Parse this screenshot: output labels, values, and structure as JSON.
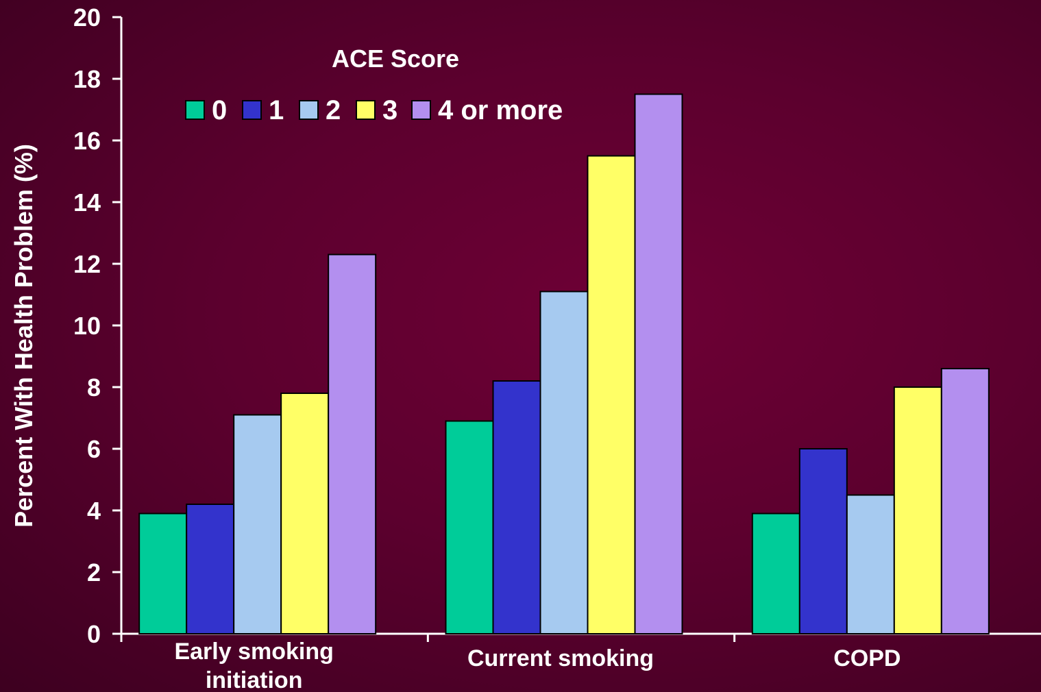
{
  "chart_data": {
    "type": "bar",
    "ylabel": "Percent With Health Problem  (%)",
    "xlabel": "",
    "ylim": [
      0,
      20
    ],
    "yticks": [
      0,
      2,
      4,
      6,
      8,
      10,
      12,
      14,
      16,
      18,
      20
    ],
    "categories": [
      [
        "Early smoking",
        "initiation"
      ],
      [
        "Current smoking"
      ],
      [
        "COPD"
      ]
    ],
    "legend": {
      "title": "ACE Score",
      "placement": "top-left"
    },
    "series": [
      {
        "name": "0",
        "color": "#00cc99",
        "values": [
          3.9,
          6.9,
          3.9
        ]
      },
      {
        "name": "1",
        "color": "#3333cc",
        "values": [
          4.2,
          8.2,
          6.0
        ]
      },
      {
        "name": "2",
        "color": "#a6caf0",
        "values": [
          7.1,
          11.1,
          4.5
        ]
      },
      {
        "name": "3",
        "color": "#ffff66",
        "values": [
          7.8,
          15.5,
          8.0
        ]
      },
      {
        "name": "4 or more",
        "color": "#b38fef",
        "values": [
          12.3,
          17.5,
          8.6
        ]
      }
    ],
    "grid": false
  }
}
